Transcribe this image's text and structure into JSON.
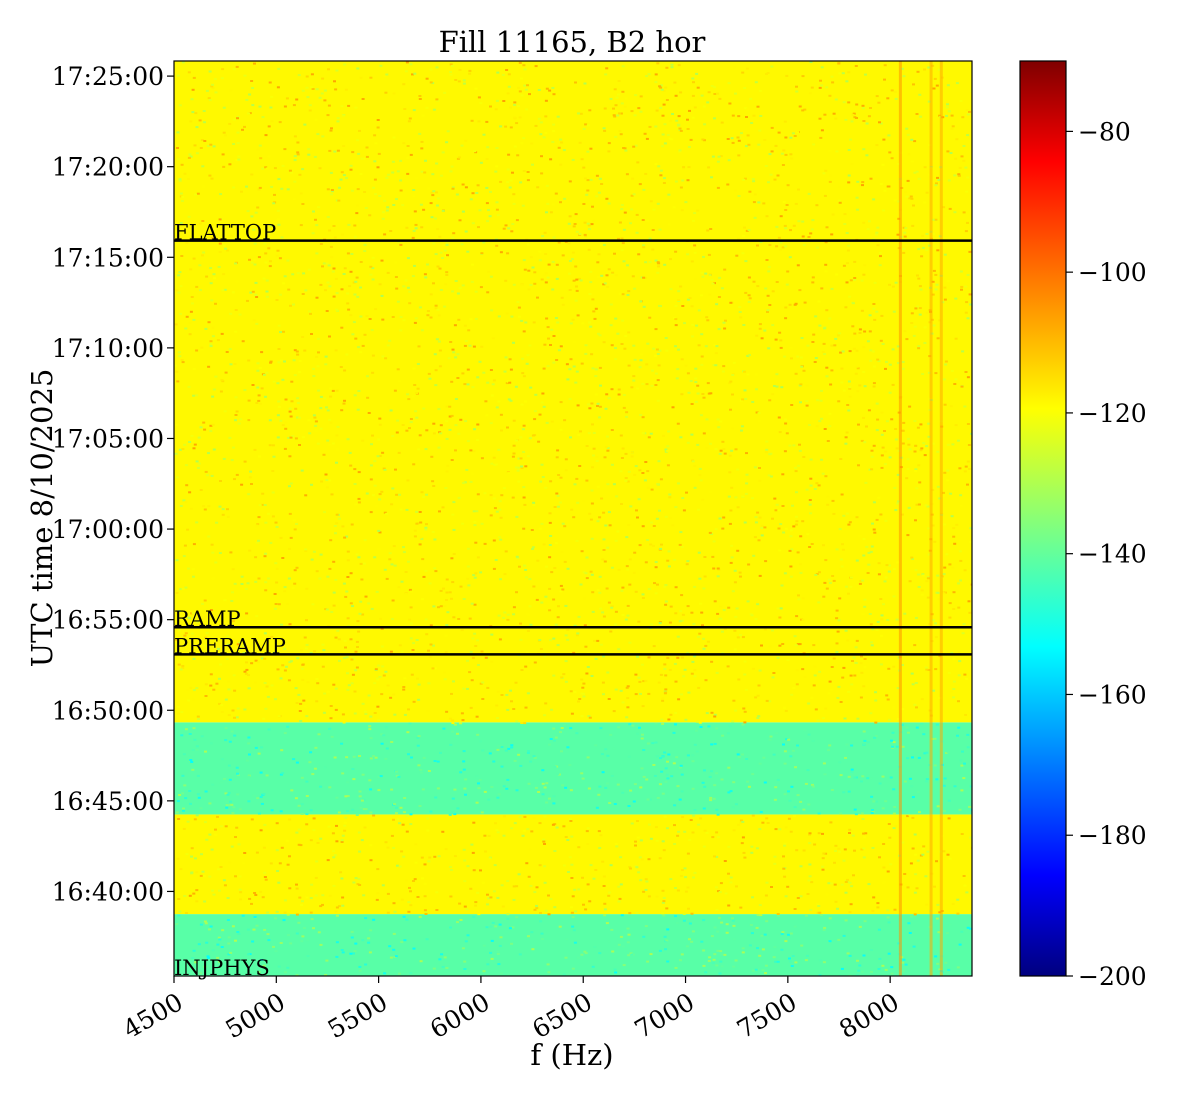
{
  "chart_data": {
    "type": "heatmap",
    "title": "Fill 11165, B2 hor",
    "xlabel": "f (Hz)",
    "ylabel": "UTC time 8/10/2025",
    "xlim": [
      4500,
      8400
    ],
    "ylim": [
      "16:35:20",
      "17:25:50"
    ],
    "x_ticks": [
      "4500",
      "5000",
      "5500",
      "6000",
      "6500",
      "7000",
      "7500",
      "8000"
    ],
    "y_ticks": [
      "16:40:00",
      "16:45:00",
      "16:50:00",
      "16:55:00",
      "17:00:00",
      "17:05:00",
      "17:10:00",
      "17:15:00",
      "17:20:00",
      "17:25:00"
    ],
    "colorbar": {
      "colormap": "jet",
      "range": [
        -200,
        -70
      ],
      "ticks": [
        "−200",
        "−180",
        "−160",
        "−140",
        "−120",
        "−100",
        "−80"
      ]
    },
    "time_bands": [
      {
        "start": "16:35:20",
        "end": "16:38:45",
        "level_db": -140
      },
      {
        "start": "16:38:45",
        "end": "16:44:15",
        "level_db": -118
      },
      {
        "start": "16:44:15",
        "end": "16:49:20",
        "level_db": -140
      },
      {
        "start": "16:49:20",
        "end": "17:25:50",
        "level_db": -118
      }
    ],
    "frequency_lines": [
      {
        "f_hz": 8050,
        "level_db": -105
      },
      {
        "f_hz": 8200,
        "level_db": -108
      },
      {
        "f_hz": 8250,
        "level_db": -108
      }
    ],
    "markers": [
      {
        "label": "INJPHYS",
        "time": "16:35:20"
      },
      {
        "label": "PRERAMP",
        "time": "16:53:05"
      },
      {
        "label": "RAMP",
        "time": "16:54:35"
      },
      {
        "label": "FLATTOP",
        "time": "17:15:55"
      }
    ]
  }
}
